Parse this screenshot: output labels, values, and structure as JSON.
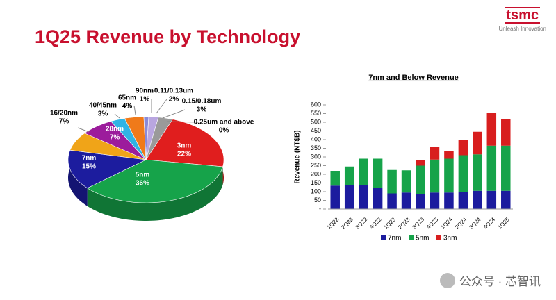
{
  "header": {
    "title": "1Q25 Revenue by Technology",
    "logo": "tsmc",
    "tagline": "Unleash Innovation"
  },
  "watermark": "公众号 · 芯智讯",
  "chart_data": [
    {
      "type": "pie",
      "categories": [
        "3nm",
        "5nm",
        "7nm",
        "16/20nm",
        "28nm",
        "40/45nm",
        "65nm",
        "90nm",
        "0.11/0.13um",
        "0.15/0.18um",
        "0.25um and above"
      ],
      "values": [
        22,
        36,
        15,
        7,
        7,
        3,
        4,
        1,
        2,
        3,
        0
      ],
      "value_labels": [
        "22%",
        "36%",
        "15%",
        "7%",
        "7%",
        "3%",
        "4%",
        "1%",
        "2%",
        "3%",
        "0%"
      ],
      "colors": [
        "#e01e1e",
        "#16a34a",
        "#1c1c9e",
        "#f0a418",
        "#9c1c9c",
        "#30b4e4",
        "#f07a1a",
        "#8a8ad8",
        "#b9a6e0",
        "#9a9a9a",
        "#505050"
      ]
    },
    {
      "type": "stacked_bar",
      "title": "7nm and Below Revenue",
      "y_label": "Revenue (NT$B)",
      "categories": [
        "1Q22",
        "2Q22",
        "3Q22",
        "4Q22",
        "1Q23",
        "2Q23",
        "3Q23",
        "4Q23",
        "1Q24",
        "2Q24",
        "3Q24",
        "4Q24",
        "1Q25"
      ],
      "series": [
        {
          "name": "7nm",
          "color": "#1c1c9e",
          "values": [
            135,
            140,
            140,
            120,
            90,
            95,
            85,
            95,
            95,
            100,
            105,
            105,
            105
          ]
        },
        {
          "name": "5nm",
          "color": "#16a34a",
          "values": [
            85,
            105,
            150,
            170,
            135,
            128,
            165,
            190,
            195,
            210,
            210,
            260,
            260
          ]
        },
        {
          "name": "3nm",
          "color": "#d81e1e",
          "values": [
            0,
            0,
            0,
            0,
            0,
            0,
            30,
            75,
            45,
            90,
            130,
            190,
            155
          ]
        }
      ],
      "ylim": [
        0,
        600
      ],
      "yticks": [
        {
          "value": 0,
          "label": "-"
        },
        50,
        100,
        150,
        200,
        250,
        300,
        350,
        400,
        450,
        500,
        550,
        600
      ],
      "legend": "bottom"
    }
  ]
}
